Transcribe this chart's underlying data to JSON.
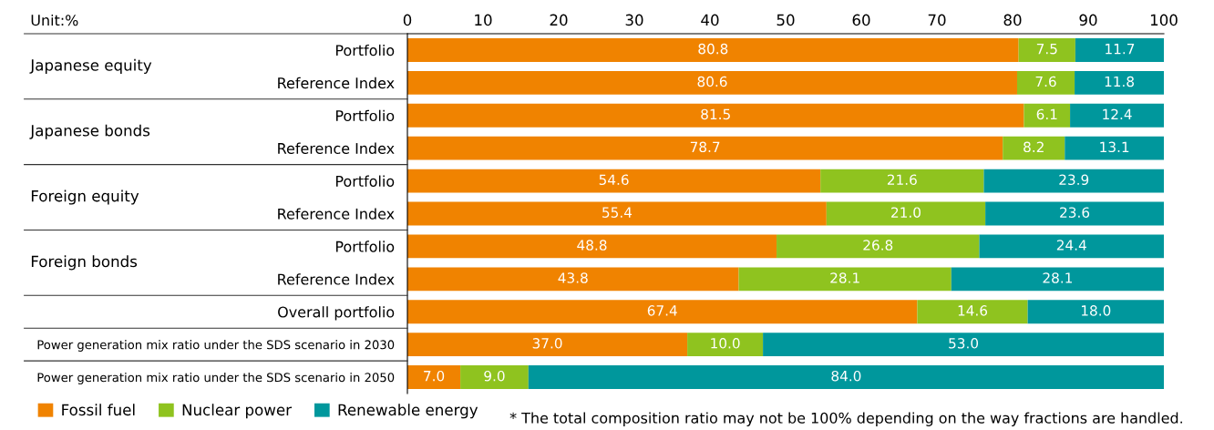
{
  "chart_data": {
    "type": "bar",
    "orientation": "horizontal",
    "stacked": true,
    "categories": [
      "Portfolio",
      "Reference Index",
      "Portfolio",
      "Reference Index",
      "Portfolio",
      "Reference Index",
      "Portfolio",
      "Reference Index",
      "Overall portfolio",
      "Power generation mix ratio under the SDS scenario in 2030",
      "Power generation mix ratio under the SDS scenario in 2050"
    ],
    "series": [
      {
        "name": "Fossil fuel",
        "color": "#f08300",
        "values": [
          80.8,
          80.6,
          81.5,
          78.7,
          54.6,
          55.4,
          48.8,
          43.8,
          67.4,
          37,
          7
        ],
        "value_labels": [
          "80.8",
          "80.6",
          "81.5",
          "78.7",
          "54.6",
          "55.4",
          "48.8",
          "43.8",
          "67.4",
          "37.0",
          "7.0"
        ]
      },
      {
        "name": "Nuclear power",
        "color": "#8fc31f",
        "values": [
          7.5,
          7.6,
          6.1,
          8.2,
          21.6,
          21,
          26.8,
          28.1,
          14.6,
          10,
          9
        ],
        "value_labels": [
          "7.5",
          "7.6",
          "6.1",
          "8.2",
          "21.6",
          "21.0",
          "26.8",
          "28.1",
          "14.6",
          "10.0",
          "9.0"
        ]
      },
      {
        "name": "Renewable energy",
        "color": "#00979c",
        "values": [
          11.7,
          11.8,
          12.4,
          13.1,
          23.9,
          23.6,
          24.4,
          28.1,
          18,
          53,
          84
        ],
        "value_labels": [
          "11.7",
          "11.8",
          "12.4",
          "13.1",
          "23.9",
          "23.6",
          "24.4",
          "28.1",
          "18.0",
          "53.0",
          "84.0"
        ]
      }
    ],
    "xlim": [
      0,
      100
    ],
    "xticks": [
      0,
      10,
      20,
      30,
      40,
      50,
      60,
      70,
      80,
      90,
      100
    ],
    "legend": "bottom",
    "grid": false,
    "annotations": [
      "Unit:%",
      "Japanese equity",
      "Japanese bonds",
      "Foreign equity",
      "Foreign bonds",
      "* The total composition ratio may not be 100% depending on the way fractions are handled."
    ]
  }
}
